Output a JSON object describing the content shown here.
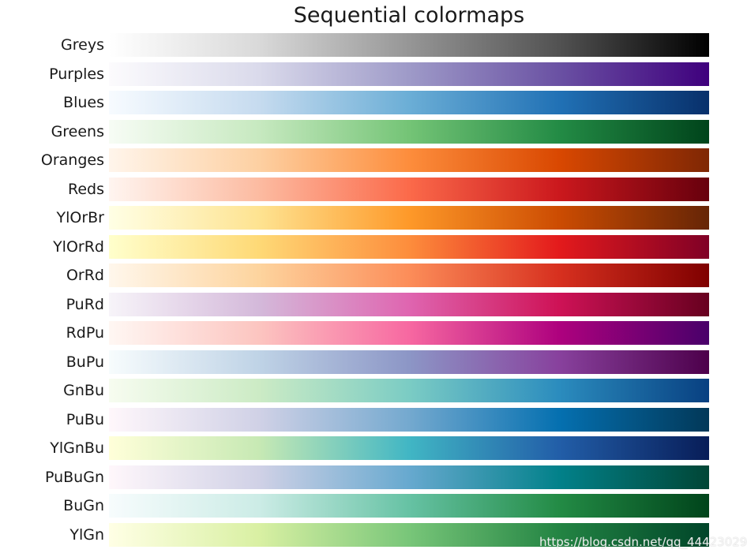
{
  "chart_data": {
    "type": "heatmap",
    "title": "Sequential colormaps",
    "colormaps": [
      {
        "name": "Greys",
        "colors": [
          "#ffffff",
          "#d9d9d9",
          "#969696",
          "#525252",
          "#000000"
        ]
      },
      {
        "name": "Purples",
        "colors": [
          "#fcfbfd",
          "#dadaeb",
          "#9e9ac8",
          "#6a51a3",
          "#3f007d"
        ]
      },
      {
        "name": "Blues",
        "colors": [
          "#f7fbff",
          "#c6dbef",
          "#6baed6",
          "#2171b5",
          "#08306b"
        ]
      },
      {
        "name": "Greens",
        "colors": [
          "#f7fcf5",
          "#c7e9c0",
          "#74c476",
          "#238b45",
          "#00441b"
        ]
      },
      {
        "name": "Oranges",
        "colors": [
          "#fff5eb",
          "#fdd0a2",
          "#fd8d3c",
          "#d94801",
          "#7f2704"
        ]
      },
      {
        "name": "Reds",
        "colors": [
          "#fff5f0",
          "#fcbba1",
          "#fb6a4a",
          "#cb181d",
          "#67000d"
        ]
      },
      {
        "name": "YlOrBr",
        "colors": [
          "#ffffe5",
          "#fee391",
          "#fe9929",
          "#cc4c02",
          "#662506"
        ]
      },
      {
        "name": "YlOrRd",
        "colors": [
          "#ffffcc",
          "#fed976",
          "#fd8d3c",
          "#e31a1c",
          "#800026"
        ]
      },
      {
        "name": "OrRd",
        "colors": [
          "#fff7ec",
          "#fdd49e",
          "#fc8d59",
          "#d7301f",
          "#7f0000"
        ]
      },
      {
        "name": "PuRd",
        "colors": [
          "#f7f4f9",
          "#d4b9da",
          "#df65b0",
          "#ce1256",
          "#67001f"
        ]
      },
      {
        "name": "RdPu",
        "colors": [
          "#fff7f3",
          "#fcc5c0",
          "#f768a1",
          "#ae017e",
          "#49006a"
        ]
      },
      {
        "name": "BuPu",
        "colors": [
          "#f7fcfd",
          "#bfd3e6",
          "#8c96c6",
          "#88419d",
          "#4d004b"
        ]
      },
      {
        "name": "GnBu",
        "colors": [
          "#f7fcf0",
          "#ccebc5",
          "#7bccc4",
          "#2b8cbe",
          "#084081"
        ]
      },
      {
        "name": "PuBu",
        "colors": [
          "#fff7fb",
          "#d0d1e6",
          "#74a9cf",
          "#0570b0",
          "#023858"
        ]
      },
      {
        "name": "YlGnBu",
        "colors": [
          "#ffffd9",
          "#c7e9b4",
          "#41b6c4",
          "#225ea8",
          "#081d58"
        ]
      },
      {
        "name": "PuBuGn",
        "colors": [
          "#fff7fb",
          "#d0d1e6",
          "#67a9cf",
          "#02818a",
          "#014636"
        ]
      },
      {
        "name": "BuGn",
        "colors": [
          "#f7fcfd",
          "#ccece6",
          "#66c2a4",
          "#238b45",
          "#00441b"
        ]
      },
      {
        "name": "YlGn",
        "colors": [
          "#ffffe5",
          "#d9f0a3",
          "#78c679",
          "#238443",
          "#004529"
        ]
      }
    ]
  },
  "watermark": "https://blog.csdn.net/qq_44423029"
}
